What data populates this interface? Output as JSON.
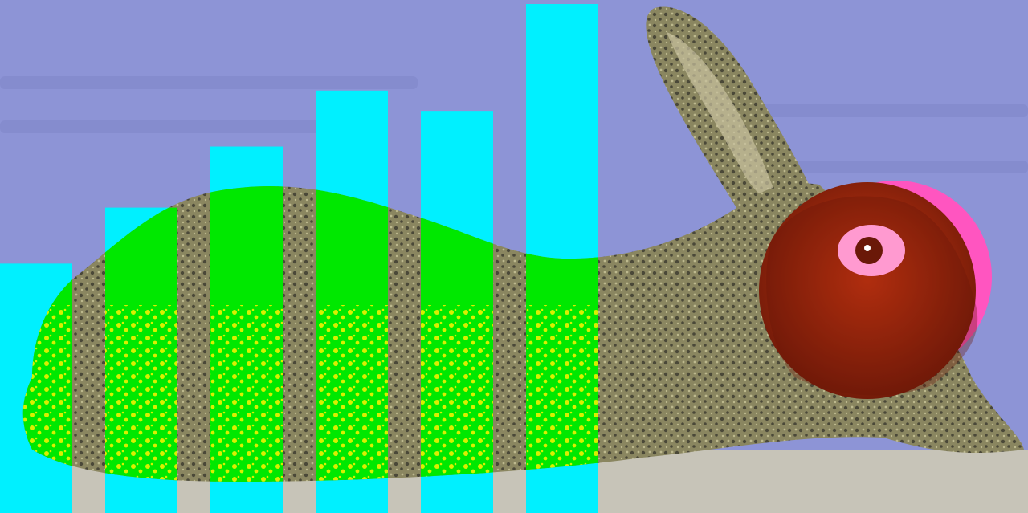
{
  "scene": {
    "subject": "rabbit",
    "style": "halftone-collage",
    "colors": {
      "background": "#8d94d6",
      "background_text": "#7f85c8",
      "bar_top": "#00f0ff",
      "bar_body": "#00e800",
      "bar_speckle": "#f2f000",
      "rabbit_fur": "#8a8660",
      "rabbit_fur_dark": "#4a4838",
      "rabbit_fur_light": "#bdb98e",
      "ear_inner": "#c9c2a0",
      "ground": "#c7c4b8",
      "halo": "#ff55c0",
      "head_disc": "#d63a12",
      "head_disc_dark": "#6a1808",
      "eye_ring": "#ff9ad0"
    },
    "bars": [
      {
        "level": 0.49
      },
      {
        "level": 0.6
      },
      {
        "level": 0.72
      },
      {
        "level": 0.83
      },
      {
        "level": 0.79
      },
      {
        "level": 1.0
      }
    ]
  }
}
